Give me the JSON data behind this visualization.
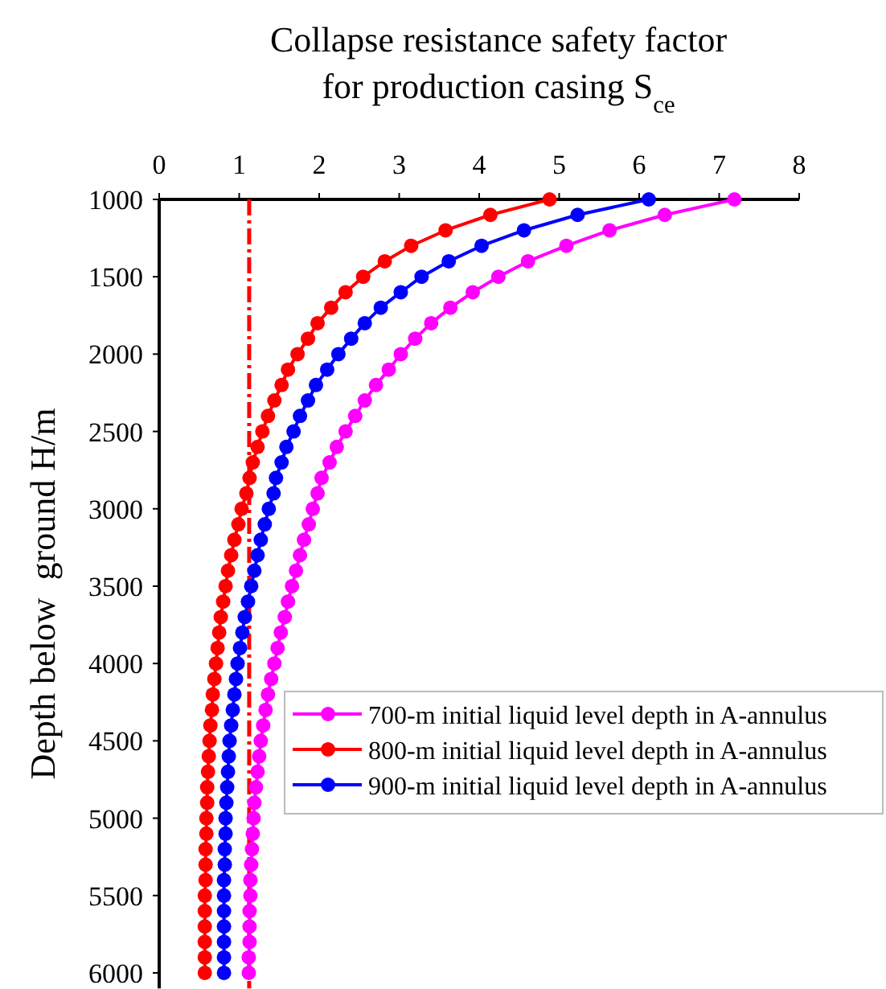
{
  "chart_data": {
    "type": "line",
    "xlabel": "Collapse resistance safety factor\nfor production casing S$_{ce}$",
    "ylabel": "Depth below  ground H/m",
    "xlim": [
      0,
      8
    ],
    "xticks": [
      0,
      1,
      2,
      3,
      4,
      5,
      6,
      7,
      8
    ],
    "ylim": [
      6100,
      1000
    ],
    "yticks": [
      1000,
      1500,
      2000,
      2500,
      3000,
      3500,
      4000,
      4500,
      5000,
      5500,
      6000
    ],
    "marker": "circle",
    "legend": "right",
    "grid": false,
    "ref_lines": [
      {
        "axis": "x",
        "value": 1.125,
        "color": "#ff0000",
        "line_style": "dashdot"
      }
    ],
    "series": [
      {
        "name": "700-m initial liquid level depth in A-annulus",
        "color": "#ff00ff",
        "x": [
          7.19,
          6.32,
          5.63,
          5.09,
          4.61,
          4.24,
          3.92,
          3.64,
          3.4,
          3.2,
          3.02,
          2.87,
          2.71,
          2.57,
          2.45,
          2.33,
          2.22,
          2.13,
          2.03,
          1.98,
          1.92,
          1.87,
          1.81,
          1.76,
          1.71,
          1.66,
          1.61,
          1.57,
          1.52,
          1.48,
          1.44,
          1.4,
          1.36,
          1.33,
          1.3,
          1.27,
          1.25,
          1.23,
          1.21,
          1.19,
          1.18,
          1.17,
          1.16,
          1.15,
          1.14,
          1.14,
          1.13,
          1.13,
          1.13,
          1.12,
          1.12
        ],
        "values": [
          1000,
          1100,
          1200,
          1300,
          1400,
          1500,
          1600,
          1700,
          1800,
          1900,
          2000,
          2100,
          2200,
          2300,
          2400,
          2500,
          2600,
          2700,
          2800,
          2900,
          3000,
          3100,
          3200,
          3300,
          3400,
          3500,
          3600,
          3700,
          3800,
          3900,
          4000,
          4100,
          4200,
          4300,
          4400,
          4500,
          4600,
          4700,
          4800,
          4900,
          5000,
          5100,
          5200,
          5300,
          5400,
          5500,
          5600,
          5700,
          5800,
          5900,
          6000
        ]
      },
      {
        "name": "800-m initial liquid level depth in A-annulus",
        "color": "#ff0000",
        "x": [
          4.88,
          4.14,
          3.58,
          3.15,
          2.82,
          2.55,
          2.33,
          2.15,
          1.98,
          1.86,
          1.73,
          1.61,
          1.53,
          1.44,
          1.36,
          1.29,
          1.23,
          1.17,
          1.13,
          1.09,
          1.03,
          0.99,
          0.94,
          0.9,
          0.86,
          0.83,
          0.8,
          0.77,
          0.75,
          0.73,
          0.71,
          0.69,
          0.67,
          0.66,
          0.64,
          0.63,
          0.62,
          0.61,
          0.6,
          0.6,
          0.59,
          0.59,
          0.58,
          0.58,
          0.58,
          0.57,
          0.57,
          0.57,
          0.57,
          0.57,
          0.57
        ],
        "values": [
          1000,
          1100,
          1200,
          1300,
          1400,
          1500,
          1600,
          1700,
          1800,
          1900,
          2000,
          2100,
          2200,
          2300,
          2400,
          2500,
          2600,
          2700,
          2800,
          2900,
          3000,
          3100,
          3200,
          3300,
          3400,
          3500,
          3600,
          3700,
          3800,
          3900,
          4000,
          4100,
          4200,
          4300,
          4400,
          4500,
          4600,
          4700,
          4800,
          4900,
          5000,
          5100,
          5200,
          5300,
          5400,
          5500,
          5600,
          5700,
          5800,
          5900,
          6000
        ]
      },
      {
        "name": "900-m initial liquid level depth in A-annulus",
        "color": "#0000ff",
        "x": [
          6.12,
          5.23,
          4.56,
          4.03,
          3.62,
          3.28,
          3.02,
          2.77,
          2.57,
          2.4,
          2.24,
          2.1,
          1.96,
          1.86,
          1.76,
          1.68,
          1.59,
          1.53,
          1.46,
          1.43,
          1.37,
          1.32,
          1.27,
          1.23,
          1.19,
          1.15,
          1.11,
          1.07,
          1.04,
          1.01,
          0.98,
          0.96,
          0.94,
          0.92,
          0.9,
          0.88,
          0.87,
          0.86,
          0.85,
          0.84,
          0.83,
          0.83,
          0.82,
          0.82,
          0.81,
          0.81,
          0.81,
          0.81,
          0.81,
          0.81,
          0.81
        ],
        "values": [
          1000,
          1100,
          1200,
          1300,
          1400,
          1500,
          1600,
          1700,
          1800,
          1900,
          2000,
          2100,
          2200,
          2300,
          2400,
          2500,
          2600,
          2700,
          2800,
          2900,
          3000,
          3100,
          3200,
          3300,
          3400,
          3500,
          3600,
          3700,
          3800,
          3900,
          4000,
          4100,
          4200,
          4300,
          4400,
          4500,
          4600,
          4700,
          4800,
          4900,
          5000,
          5100,
          5200,
          5300,
          5400,
          5500,
          5600,
          5700,
          5800,
          5900,
          6000
        ]
      }
    ]
  }
}
